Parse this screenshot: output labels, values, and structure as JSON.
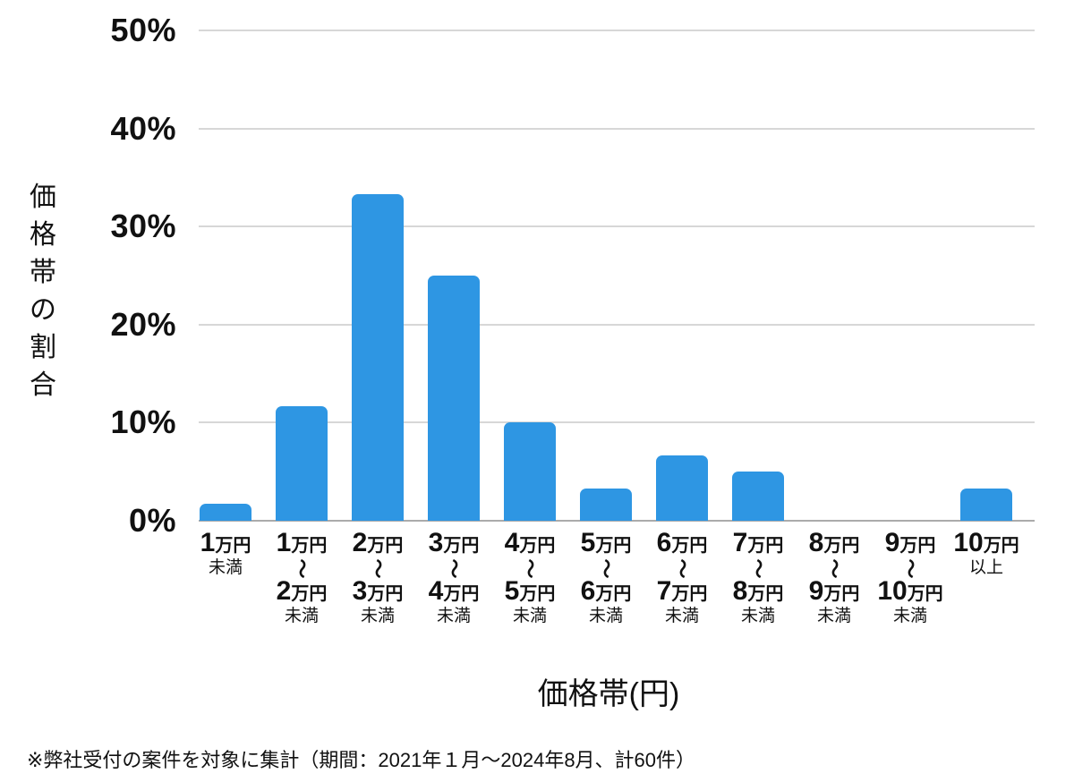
{
  "chart_data": {
    "type": "bar",
    "title": "",
    "xlabel": "価格帯(円)",
    "ylabel": "価格帯の割合",
    "ylim": [
      0,
      50
    ],
    "grid": true,
    "legend": "none",
    "colors": {
      "bar": "#2E96E3",
      "gridline": "#D7D7D7",
      "axis_baseline": "#ABABAB",
      "text": "#111111",
      "background": "#FFFFFF"
    },
    "yticks": [
      {
        "value": 0,
        "label": "0%"
      },
      {
        "value": 10,
        "label": "10%"
      },
      {
        "value": 20,
        "label": "20%"
      },
      {
        "value": 30,
        "label": "30%"
      },
      {
        "value": 40,
        "label": "40%"
      },
      {
        "value": 50,
        "label": "50%"
      }
    ],
    "categories": [
      {
        "from_num": "1",
        "from_unit": "万円",
        "range": false,
        "tilde": "",
        "to_num": "",
        "to_unit": "",
        "suffix": "未満"
      },
      {
        "from_num": "1",
        "from_unit": "万円",
        "range": true,
        "tilde": "〜",
        "to_num": "2",
        "to_unit": "万円",
        "suffix": "未満"
      },
      {
        "from_num": "2",
        "from_unit": "万円",
        "range": true,
        "tilde": "〜",
        "to_num": "3",
        "to_unit": "万円",
        "suffix": "未満"
      },
      {
        "from_num": "3",
        "from_unit": "万円",
        "range": true,
        "tilde": "〜",
        "to_num": "4",
        "to_unit": "万円",
        "suffix": "未満"
      },
      {
        "from_num": "4",
        "from_unit": "万円",
        "range": true,
        "tilde": "〜",
        "to_num": "5",
        "to_unit": "万円",
        "suffix": "未満"
      },
      {
        "from_num": "5",
        "from_unit": "万円",
        "range": true,
        "tilde": "〜",
        "to_num": "6",
        "to_unit": "万円",
        "suffix": "未満"
      },
      {
        "from_num": "6",
        "from_unit": "万円",
        "range": true,
        "tilde": "〜",
        "to_num": "7",
        "to_unit": "万円",
        "suffix": "未満"
      },
      {
        "from_num": "7",
        "from_unit": "万円",
        "range": true,
        "tilde": "〜",
        "to_num": "8",
        "to_unit": "万円",
        "suffix": "未満"
      },
      {
        "from_num": "8",
        "from_unit": "万円",
        "range": true,
        "tilde": "〜",
        "to_num": "9",
        "to_unit": "万円",
        "suffix": "未満"
      },
      {
        "from_num": "9",
        "from_unit": "万円",
        "range": true,
        "tilde": "〜",
        "to_num": "10",
        "to_unit": "万円",
        "suffix": "未満"
      },
      {
        "from_num": "10",
        "from_unit": "万円",
        "range": false,
        "tilde": "",
        "to_num": "",
        "to_unit": "",
        "suffix": "以上"
      }
    ],
    "values_percent": [
      1.7,
      11.7,
      33.3,
      25.0,
      10.0,
      3.3,
      6.7,
      5.0,
      0.0,
      0.0,
      3.3
    ],
    "note": "※弊社受付の案件を対象に集計（期間：2021年１月〜2024年8月、計60件）"
  }
}
